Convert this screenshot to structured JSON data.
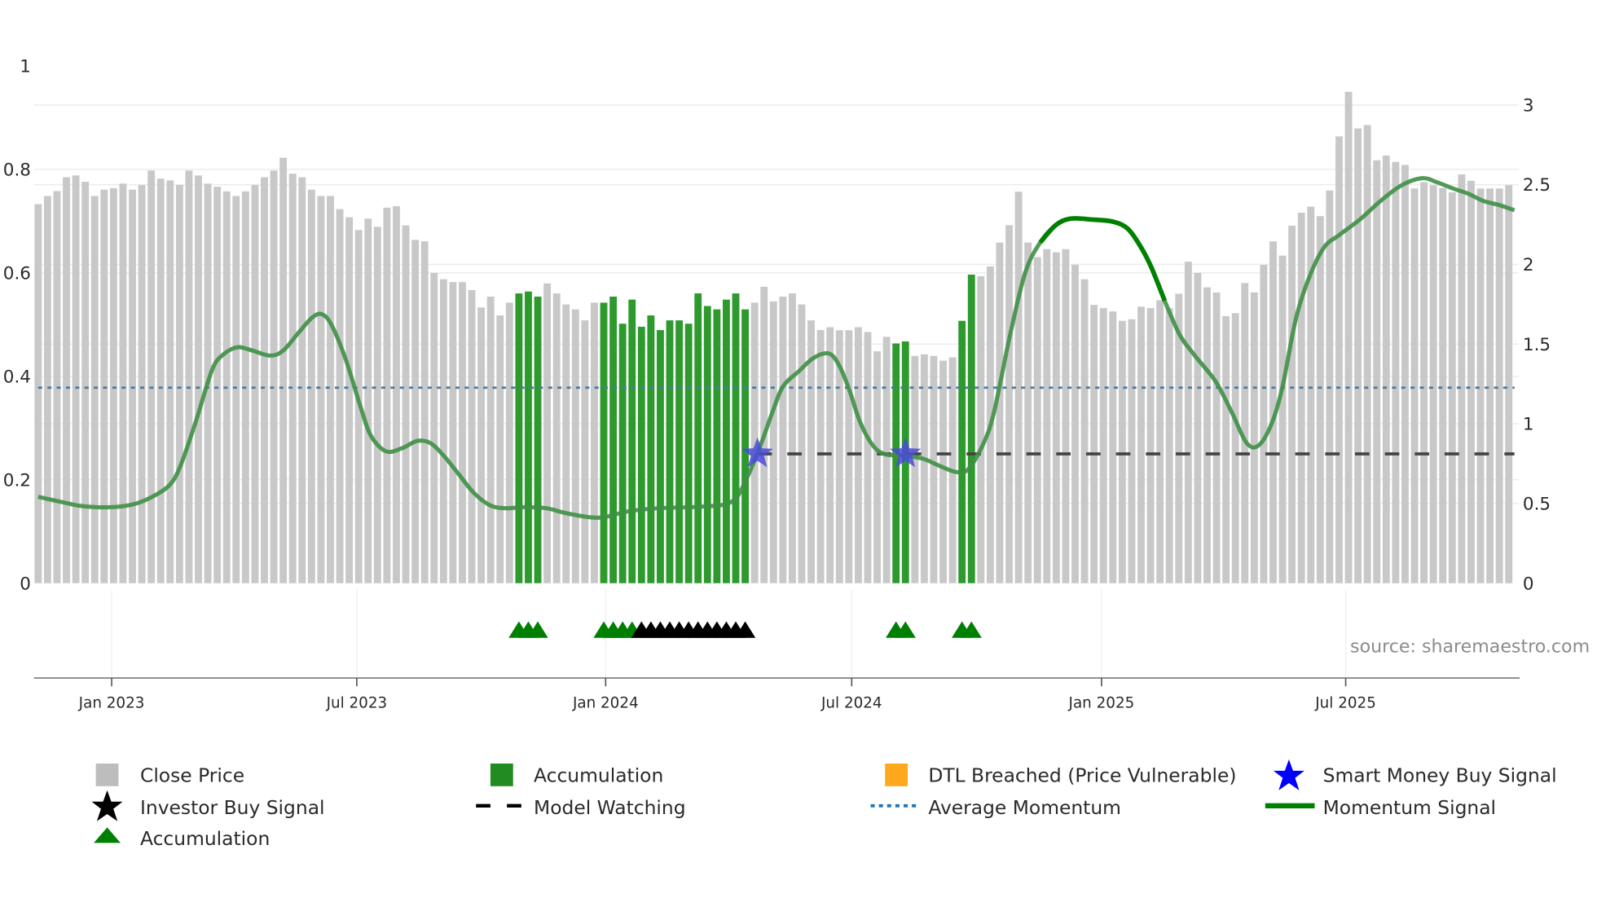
{
  "chart_data": {
    "type": "bar",
    "title": "",
    "source": "source: sharemaestro.com",
    "left_axis": {
      "ticks": [
        0,
        0.2,
        0.4,
        0.6,
        0.8,
        1
      ],
      "tick_labels": [
        "0",
        "0.2",
        "0.4",
        "0.6",
        "0.8",
        "1"
      ],
      "range": [
        0,
        1
      ]
    },
    "right_axis": {
      "ticks": [
        0,
        0.5,
        1,
        1.5,
        2,
        2.5,
        3
      ],
      "tick_labels": [
        "0",
        "0.5",
        "1",
        "1.5",
        "2",
        "2.5",
        "3"
      ],
      "range": [
        0,
        3.1
      ]
    },
    "x_axis": {
      "unit": "week index",
      "range": [
        0,
        156
      ],
      "ticks": [
        7.8,
        33.8,
        60.2,
        86.3,
        112.8,
        138.7
      ],
      "tick_labels": [
        "Jan 2023",
        "Jul 2023",
        "Jan 2024",
        "Jul 2024",
        "Jan 2025",
        "Jul 2025"
      ]
    },
    "grid": true,
    "close_price": [
      2.378,
      2.429,
      2.46,
      2.547,
      2.558,
      2.518,
      2.429,
      2.469,
      2.478,
      2.507,
      2.469,
      2.498,
      2.589,
      2.538,
      2.527,
      2.498,
      2.589,
      2.558,
      2.507,
      2.487,
      2.458,
      2.429,
      2.458,
      2.498,
      2.547,
      2.589,
      2.669,
      2.569,
      2.547,
      2.469,
      2.429,
      2.429,
      2.347,
      2.296,
      2.216,
      2.287,
      2.236,
      2.356,
      2.365,
      2.245,
      2.154,
      2.145,
      1.946,
      1.907,
      1.889,
      1.889,
      1.839,
      1.73,
      1.798,
      1.68,
      1.76,
      1.818,
      1.83,
      1.798,
      1.881,
      1.818,
      1.749,
      1.718,
      1.649,
      1.76,
      1.76,
      1.798,
      1.628,
      1.779,
      1.609,
      1.68,
      1.588,
      1.649,
      1.649,
      1.628,
      1.818,
      1.739,
      1.718,
      1.779,
      1.818,
      1.718,
      1.76,
      1.86,
      1.768,
      1.798,
      1.818,
      1.749,
      1.649,
      1.588,
      1.606,
      1.587,
      1.587,
      1.606,
      1.576,
      1.455,
      1.546,
      1.504,
      1.517,
      1.426,
      1.436,
      1.426,
      1.396,
      1.417,
      1.646,
      1.936,
      1.926,
      1.987,
      2.137,
      2.246,
      2.456,
      2.137,
      2.046,
      2.096,
      2.076,
      2.096,
      1.998,
      1.907,
      1.746,
      1.726,
      1.705,
      1.646,
      1.656,
      1.735,
      1.726,
      1.775,
      1.726,
      1.816,
      2.017,
      1.947,
      1.856,
      1.824,
      1.675,
      1.694,
      1.883,
      1.824,
      1.997,
      2.145,
      2.055,
      2.243,
      2.324,
      2.362,
      2.303,
      2.464,
      2.803,
      3.083,
      2.853,
      2.874,
      2.653,
      2.683,
      2.643,
      2.624,
      2.476,
      2.516,
      2.497,
      2.48,
      2.452,
      2.564,
      2.524,
      2.476,
      2.476,
      2.476,
      2.497
    ],
    "accumulation_bar_indices": [
      51,
      52,
      53,
      60,
      61,
      62,
      63,
      64,
      65,
      66,
      67,
      68,
      69,
      70,
      71,
      72,
      73,
      74,
      75,
      91,
      92,
      98,
      99
    ],
    "accumulation_triangle_indices": [
      51,
      52,
      53,
      60,
      61,
      62,
      63,
      91,
      92,
      98,
      99
    ],
    "investor_buy_triangle_indices": [
      64,
      65,
      66,
      67,
      68,
      69,
      70,
      71,
      72,
      73,
      74,
      75
    ],
    "smart_money_buy_signals": [
      {
        "x": 76.3,
        "y": 0.25
      },
      {
        "x": 92.0,
        "y": 0.25
      }
    ],
    "model_watching": {
      "level": 0.25,
      "from_x": 76.3,
      "to_x": 156.6
    },
    "average_momentum": 0.378,
    "momentum_signal": [
      [
        0,
        0.167
      ],
      [
        2.5,
        0.157
      ],
      [
        4.7,
        0.149
      ],
      [
        7.8,
        0.147
      ],
      [
        10.2,
        0.153
      ],
      [
        12.3,
        0.169
      ],
      [
        14.0,
        0.191
      ],
      [
        15.1,
        0.227
      ],
      [
        16.7,
        0.311
      ],
      [
        18.4,
        0.41
      ],
      [
        19.5,
        0.44
      ],
      [
        21.1,
        0.456
      ],
      [
        22.7,
        0.45
      ],
      [
        24.6,
        0.44
      ],
      [
        26.0,
        0.45
      ],
      [
        27.7,
        0.486
      ],
      [
        29.1,
        0.514
      ],
      [
        30.1,
        0.52
      ],
      [
        31.1,
        0.5
      ],
      [
        32.6,
        0.434
      ],
      [
        34.2,
        0.341
      ],
      [
        35.3,
        0.285
      ],
      [
        36.9,
        0.255
      ],
      [
        38.6,
        0.261
      ],
      [
        40.2,
        0.275
      ],
      [
        41.6,
        0.271
      ],
      [
        43.0,
        0.247
      ],
      [
        44.6,
        0.211
      ],
      [
        46.2,
        0.175
      ],
      [
        47.9,
        0.151
      ],
      [
        49.5,
        0.145
      ],
      [
        51.7,
        0.147
      ],
      [
        53.9,
        0.145
      ],
      [
        56.1,
        0.135
      ],
      [
        58.8,
        0.127
      ],
      [
        60.4,
        0.129
      ],
      [
        62.6,
        0.139
      ],
      [
        65.9,
        0.145
      ],
      [
        69.2,
        0.147
      ],
      [
        72.5,
        0.151
      ],
      [
        73.8,
        0.161
      ],
      [
        74.6,
        0.181
      ],
      [
        76.3,
        0.251
      ],
      [
        77.9,
        0.331
      ],
      [
        79.0,
        0.38
      ],
      [
        80.7,
        0.41
      ],
      [
        82.3,
        0.436
      ],
      [
        83.9,
        0.444
      ],
      [
        85.0,
        0.42
      ],
      [
        86.1,
        0.371
      ],
      [
        87.2,
        0.311
      ],
      [
        88.6,
        0.265
      ],
      [
        89.9,
        0.249
      ],
      [
        91.6,
        0.247
      ],
      [
        93.8,
        0.241
      ],
      [
        95.6,
        0.227
      ],
      [
        97.4,
        0.215
      ],
      [
        98.7,
        0.221
      ],
      [
        100.3,
        0.271
      ],
      [
        101.4,
        0.331
      ],
      [
        103.1,
        0.48
      ],
      [
        104.7,
        0.6
      ],
      [
        106.3,
        0.659
      ],
      [
        108.0,
        0.693
      ],
      [
        109.6,
        0.705
      ],
      [
        111.8,
        0.703
      ],
      [
        114.0,
        0.699
      ],
      [
        115.6,
        0.685
      ],
      [
        117.0,
        0.649
      ],
      [
        118.1,
        0.61
      ],
      [
        119.5,
        0.546
      ],
      [
        121.1,
        0.48
      ],
      [
        122.7,
        0.44
      ],
      [
        124.9,
        0.39
      ],
      [
        126.6,
        0.331
      ],
      [
        128.2,
        0.271
      ],
      [
        129.5,
        0.267
      ],
      [
        130.9,
        0.311
      ],
      [
        132.0,
        0.38
      ],
      [
        133.4,
        0.51
      ],
      [
        134.8,
        0.59
      ],
      [
        136.4,
        0.649
      ],
      [
        138.0,
        0.673
      ],
      [
        140.2,
        0.703
      ],
      [
        142.4,
        0.739
      ],
      [
        144.6,
        0.769
      ],
      [
        146.8,
        0.783
      ],
      [
        148.4,
        0.775
      ],
      [
        150.1,
        0.763
      ],
      [
        151.7,
        0.753
      ],
      [
        153.3,
        0.739
      ],
      [
        155.0,
        0.731
      ],
      [
        156.6,
        0.721
      ]
    ],
    "momentum_highlight_range": [
      105,
      120
    ],
    "legend": {
      "placement": "bottom",
      "items": [
        {
          "label": "Close Price",
          "symbol": "square",
          "color": "#bdbdbd"
        },
        {
          "label": "Accumulation",
          "symbol": "square",
          "color": "#228b22"
        },
        {
          "label": "DTL Breached (Price Vulnerable)",
          "symbol": "square",
          "color": "#ffa500"
        },
        {
          "label": "Smart Money Buy Signal",
          "symbol": "star",
          "color": "#0000ff"
        },
        {
          "label": "Investor Buy Signal",
          "symbol": "star",
          "color": "#000000"
        },
        {
          "label": "Model Watching",
          "symbol": "dash",
          "color": "#000000"
        },
        {
          "label": "Average Momentum",
          "symbol": "dot",
          "color": "#1f77b4"
        },
        {
          "label": "Momentum Signal",
          "symbol": "line",
          "color": "#008000"
        },
        {
          "label": "Accumulation",
          "symbol": "triangle",
          "color": "#008000"
        }
      ]
    },
    "colors": {
      "close_price": "#c8c8c8",
      "accumulation_bar": "#2e9a2e",
      "momentum": "#3f8f46",
      "momentum_strong": "#008000",
      "average_momentum": "#4a7aa0",
      "model_watching": "#444444",
      "smart_money": "#4a4ad8",
      "triangle_green": "#008000",
      "triangle_black": "#000000"
    }
  }
}
